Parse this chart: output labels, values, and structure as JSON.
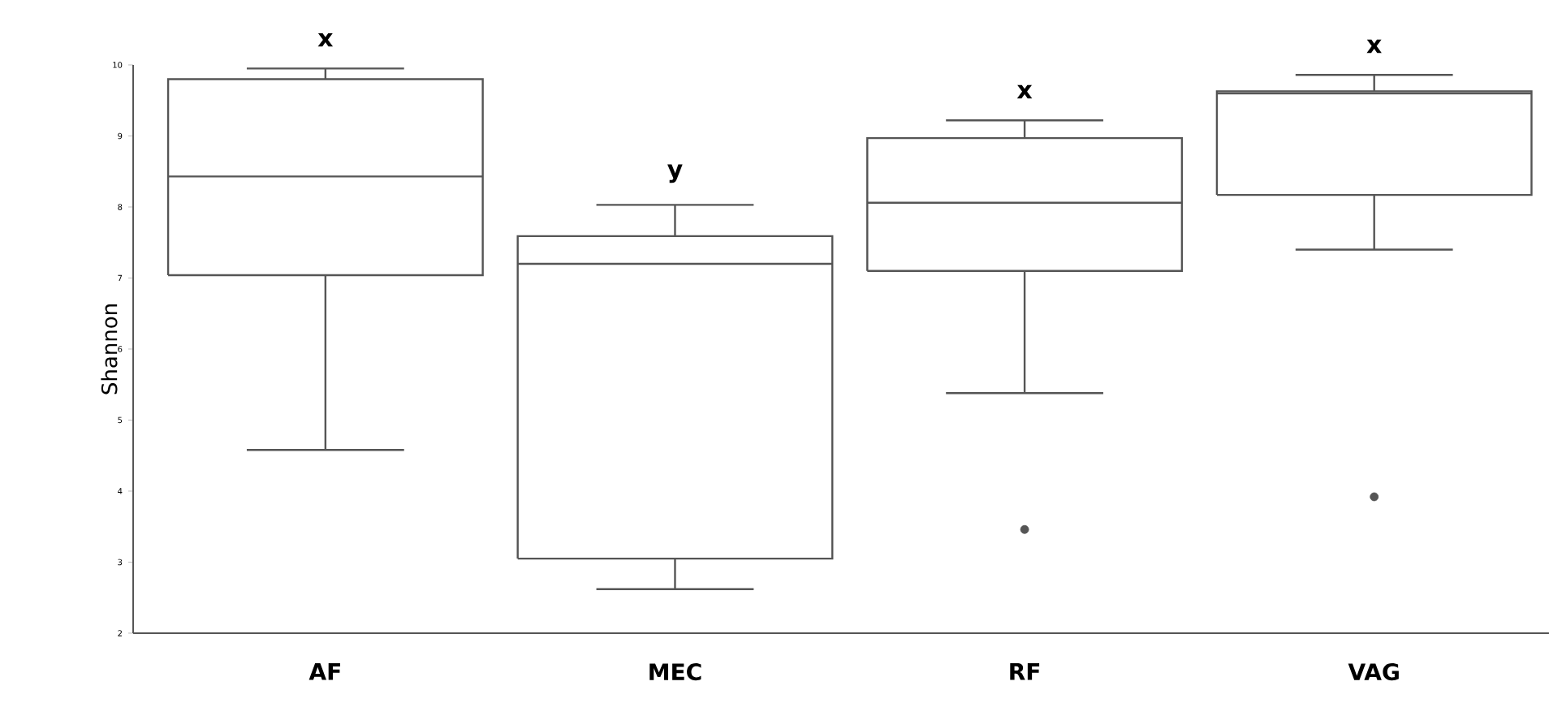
{
  "chart_data": {
    "type": "box",
    "ylabel": "Shannon",
    "categories": [
      "AF",
      "MEC",
      "RF",
      "VAG"
    ],
    "boxes": [
      {
        "low": 4.58,
        "q1": 7.04,
        "median": 8.43,
        "q3": 9.8,
        "high": 9.95
      },
      {
        "low": 2.62,
        "q1": 3.05,
        "median": 7.2,
        "q3": 7.59,
        "high": 8.03
      },
      {
        "low": 5.38,
        "q1": 7.1,
        "median": 8.06,
        "q3": 8.97,
        "high": 9.22,
        "outliers": [
          3.46
        ]
      },
      {
        "low": 7.4,
        "q1": 8.17,
        "median": 9.6,
        "q3": 9.63,
        "high": 9.86,
        "outliers": [
          3.92
        ]
      }
    ],
    "color": "#555555",
    "ylim": [
      2,
      10
    ],
    "yticks": [
      2,
      3,
      4,
      5,
      6,
      7,
      8,
      9,
      10
    ],
    "annotations": [
      "x",
      "y",
      "x",
      "x"
    ]
  }
}
